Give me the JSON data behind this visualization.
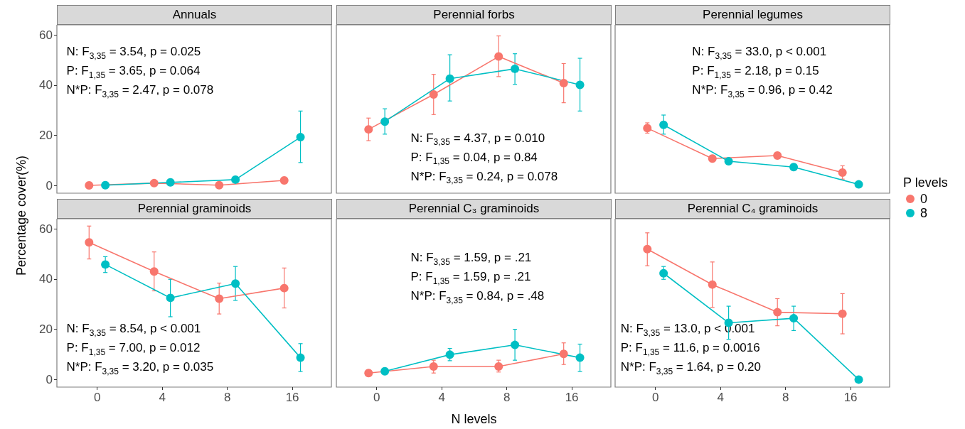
{
  "chart_data": [
    {
      "type": "line",
      "title": "Annuals",
      "ylabel": "Percentage cover(%)",
      "categories": [
        "0",
        "4",
        "8",
        "16"
      ],
      "ylim": [
        -3,
        64
      ],
      "yticks": [
        0,
        20,
        40,
        60
      ],
      "grid": false,
      "legend": "right",
      "legend_title": "P levels",
      "marker": "circle",
      "line_style": "solid",
      "tick_labels": "y",
      "series": [
        {
          "name": "0",
          "color": "#f8766d",
          "values": [
            0.1,
            1.0,
            0.2,
            2.1
          ],
          "errors": [
            null,
            null,
            null,
            null
          ]
        },
        {
          "name": "8",
          "color": "#00bfc4",
          "values": [
            0.2,
            1.3,
            2.4,
            19.3
          ],
          "errors": [
            null,
            null,
            null,
            [
              9.2,
              29.7
            ]
          ]
        }
      ],
      "annotations": [
        "N: F$_{3,35}$ = 3.54, p = 0.025",
        "P: F$_{1,35}$ = 3.65, p = 0.064",
        "N*P: F$_{3,35}$ = 2.47, p = 0.078"
      ]
    },
    {
      "type": "line",
      "title": "Perennial forbs",
      "categories": [
        "0",
        "4",
        "8",
        "16"
      ],
      "ylim": [
        -3,
        64
      ],
      "yticks": [
        0,
        20,
        40,
        60
      ],
      "grid": false,
      "marker": "circle",
      "line_style": "solid",
      "tick_labels": false,
      "series": [
        {
          "name": "0",
          "color": "#f8766d",
          "values": [
            22.4,
            36.3,
            51.4,
            40.8
          ],
          "errors": [
            [
              17.9,
              26.9
            ],
            [
              28.3,
              44.3
            ],
            [
              43.4,
              59.6
            ],
            [
              33.0,
              48.6
            ]
          ]
        },
        {
          "name": "8",
          "color": "#00bfc4",
          "values": [
            25.5,
            42.6,
            46.5,
            40.1
          ],
          "errors": [
            [
              20.5,
              30.6
            ],
            [
              33.7,
              52.1
            ],
            [
              40.3,
              52.5
            ],
            [
              29.7,
              50.7
            ]
          ]
        }
      ],
      "annotations": [
        "N: F$_{3,35}$ = 4.37, p = 0.010",
        "P: F$_{1,35}$ = 0.04, p = 0.84",
        "N*P: F$_{3,35}$ = 0.24, p = 0.078"
      ]
    },
    {
      "type": "line",
      "title": "Perennial legumes",
      "categories": [
        "0",
        "4",
        "8",
        "16"
      ],
      "ylim": [
        -3,
        64
      ],
      "yticks": [
        0,
        20,
        40,
        60
      ],
      "grid": false,
      "marker": "circle",
      "line_style": "solid",
      "tick_labels": false,
      "series": [
        {
          "name": "0",
          "color": "#f8766d",
          "values": [
            22.9,
            10.8,
            12.0,
            5.2
          ],
          "errors": [
            [
              20.9,
              25.0
            ],
            null,
            null,
            [
              2.6,
              7.9
            ]
          ]
        },
        {
          "name": "8",
          "color": "#00bfc4",
          "values": [
            24.2,
            9.7,
            7.4,
            0.5
          ],
          "errors": [
            [
              20.5,
              28.1
            ],
            null,
            null,
            null
          ]
        }
      ],
      "annotations": [
        "N: F$_{3,35}$ = 33.0, p < 0.001",
        "P: F$_{1,35}$ = 2.18, p = 0.15",
        "N*P: F$_{3,35}$ = 0.96, p = 0.42"
      ]
    },
    {
      "type": "line",
      "title": "Perennial graminoids",
      "categories": [
        "0",
        "4",
        "8",
        "16"
      ],
      "ylim": [
        -3,
        64
      ],
      "yticks": [
        0,
        20,
        40,
        60
      ],
      "grid": false,
      "marker": "circle",
      "line_style": "solid",
      "series": [
        {
          "name": "0",
          "color": "#f8766d",
          "values": [
            54.6,
            43.0,
            32.2,
            36.4
          ],
          "errors": [
            [
              48.0,
              61.1
            ],
            [
              35.3,
              50.8
            ],
            [
              26.1,
              38.4
            ],
            [
              28.5,
              44.4
            ]
          ]
        },
        {
          "name": "8",
          "color": "#00bfc4",
          "values": [
            45.8,
            32.5,
            38.2,
            8.7
          ],
          "errors": [
            [
              42.6,
              48.9
            ],
            [
              25.0,
              39.9
            ],
            [
              31.5,
              45.0
            ],
            [
              3.2,
              14.3
            ]
          ]
        }
      ],
      "annotations": [
        "N: F$_{3,35}$ = 8.54, p < 0.001",
        "P: F$_{1,35}$ = 7.00, p = 0.012",
        "N*P: F$_{3,35}$ = 3.20, p = 0.035"
      ]
    },
    {
      "type": "line",
      "title": "Perennial C₃  graminoids",
      "xlabel": "N levels",
      "categories": [
        "0",
        "4",
        "8",
        "16"
      ],
      "ylim": [
        -3,
        64
      ],
      "yticks": [
        0,
        20,
        40,
        60
      ],
      "grid": false,
      "marker": "circle",
      "line_style": "solid",
      "tick_labels": "x",
      "series": [
        {
          "name": "0",
          "color": "#f8766d",
          "values": [
            2.6,
            5.2,
            5.2,
            10.2
          ],
          "errors": [
            null,
            [
              2.6,
              7.7
            ],
            [
              3.0,
              7.7
            ],
            [
              6.0,
              14.6
            ]
          ]
        },
        {
          "name": "8",
          "color": "#00bfc4",
          "values": [
            3.3,
            9.9,
            13.8,
            8.7
          ],
          "errors": [
            null,
            [
              7.5,
              12.4
            ],
            [
              7.7,
              20.0
            ],
            [
              3.2,
              14.1
            ]
          ]
        }
      ],
      "annotations": [
        "N: F$_{3,35}$ = 1.59, p = .21",
        "P: F$_{1,35}$ = 1.59, p = .21",
        "N*P: F$_{3,35}$ = 0.84, p = .48"
      ]
    },
    {
      "type": "line",
      "title": "Perennial C₄  graminoids",
      "categories": [
        "0",
        "4",
        "8",
        "16"
      ],
      "ylim": [
        -3,
        64
      ],
      "yticks": [
        0,
        20,
        40,
        60
      ],
      "grid": false,
      "marker": "circle",
      "line_style": "solid",
      "tick_labels": "x",
      "series": [
        {
          "name": "0",
          "color": "#f8766d",
          "values": [
            51.9,
            37.8,
            26.8,
            26.2
          ],
          "errors": [
            [
              45.3,
              58.4
            ],
            [
              28.7,
              46.8
            ],
            [
              21.4,
              32.2
            ],
            [
              18.2,
              34.2
            ]
          ]
        },
        {
          "name": "8",
          "color": "#00bfc4",
          "values": [
            42.3,
            22.6,
            24.4,
            0.0
          ],
          "errors": [
            [
              39.9,
              45.0
            ],
            [
              16.0,
              29.2
            ],
            [
              19.5,
              29.2
            ],
            null
          ]
        }
      ],
      "annotations": [
        "N: F$_{3,35}$ = 13.0, p < 0.001",
        "P: F$_{1,35}$ = 11.6, p = 0.0016",
        "N*P: F$_{3,35}$ = 1.64, p = 0.20"
      ]
    }
  ]
}
